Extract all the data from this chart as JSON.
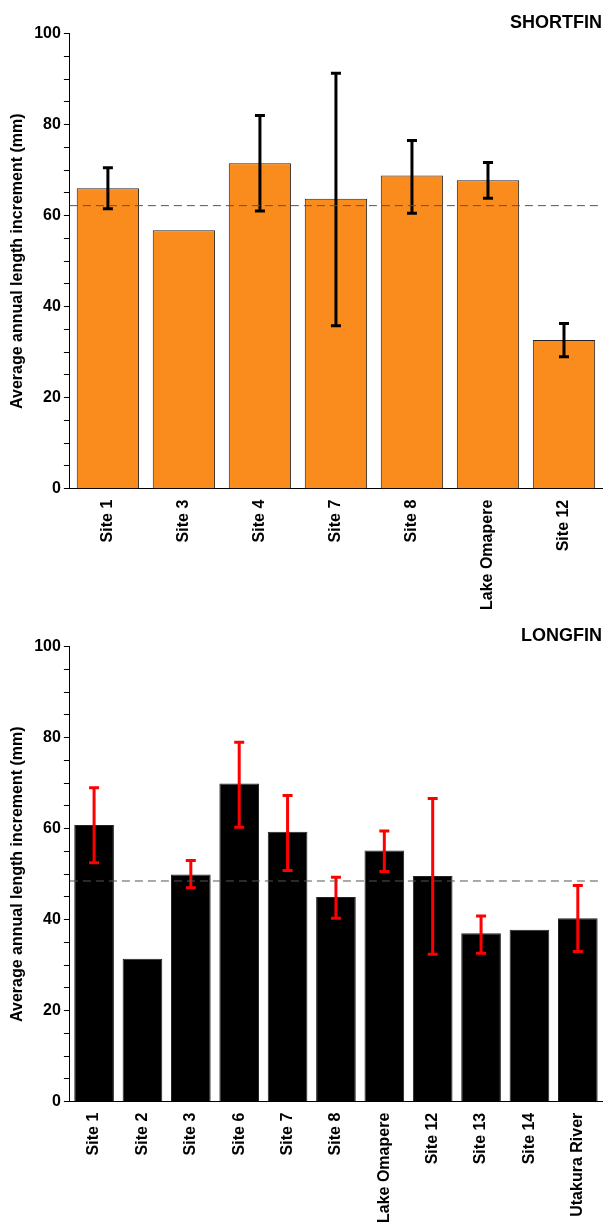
{
  "chart_data": [
    {
      "type": "bar",
      "title": "SHORTFIN",
      "ylabel": "Average annual length increment (mm)",
      "categories": [
        "Site 1",
        "Site 3",
        "Site 4",
        "Site 7",
        "Site 8",
        "Lake Omapere",
        "Site 12"
      ],
      "series": [
        {
          "color": "#fa8c1e",
          "values": [
            66,
            56.8,
            71.5,
            63.7,
            68.8,
            67.8,
            32.7
          ],
          "errors": [
            [
              61.5,
              70.5
            ],
            null,
            [
              61,
              82
            ],
            [
              35.8,
              91.3
            ],
            [
              60.5,
              76.5
            ],
            [
              63.8,
              71.7
            ],
            [
              29,
              36.3
            ]
          ]
        }
      ],
      "ylim": [
        0,
        100
      ],
      "yticks": [
        0,
        {
          "value": 5,
          "label": null
        },
        {
          "value": 10,
          "label": null
        },
        {
          "value": 15,
          "label": null
        },
        20,
        {
          "value": 25,
          "label": null
        },
        {
          "value": 30,
          "label": null
        },
        {
          "value": 35,
          "label": null
        },
        40,
        {
          "value": 45,
          "label": null
        },
        {
          "value": 50,
          "label": null
        },
        {
          "value": 55,
          "label": null
        },
        60,
        {
          "value": 65,
          "label": null
        },
        {
          "value": 70,
          "label": null
        },
        {
          "value": 75,
          "label": null
        },
        80,
        {
          "value": 85,
          "label": null
        },
        {
          "value": 90,
          "label": null
        },
        {
          "value": 95,
          "label": null
        },
        100
      ],
      "ref_lines": [
        {
          "axis": "y",
          "value": 62.2,
          "color": "#555555",
          "line_style": "dashed"
        }
      ],
      "grid": false,
      "legend": false
    },
    {
      "type": "bar",
      "title": "LONGFIN",
      "ylabel": "Average annual length increment (mm)",
      "categories": [
        "Site 1",
        "Site 2",
        "Site 3",
        "Site 6",
        "Site 7",
        "Site 8",
        "Lake Omapere",
        "Site 12",
        "Site 13",
        "Site 14",
        "Utakura River"
      ],
      "series": [
        {
          "color": "#000000",
          "values": [
            60.8,
            31.4,
            49.9,
            69.9,
            59.3,
            45,
            55.2,
            49.6,
            37,
            37.8,
            40.3
          ],
          "errors": [
            [
              52.5,
              69
            ],
            null,
            [
              47,
              53
            ],
            [
              60.3,
              79
            ],
            [
              50.8,
              67.3
            ],
            [
              40.3,
              49.3
            ],
            [
              50.6,
              59.5
            ],
            [
              32.4,
              66.6
            ],
            [
              32.6,
              40.8
            ],
            null,
            [
              33,
              47.5
            ]
          ]
        }
      ],
      "ylim": [
        0,
        100
      ],
      "yticks": [
        0,
        {
          "value": 5,
          "label": null
        },
        {
          "value": 10,
          "label": null
        },
        {
          "value": 15,
          "label": null
        },
        20,
        {
          "value": 25,
          "label": null
        },
        {
          "value": 30,
          "label": null
        },
        {
          "value": 35,
          "label": null
        },
        40,
        {
          "value": 45,
          "label": null
        },
        {
          "value": 50,
          "label": null
        },
        {
          "value": 55,
          "label": null
        },
        60,
        {
          "value": 65,
          "label": null
        },
        {
          "value": 70,
          "label": null
        },
        {
          "value": 75,
          "label": null
        },
        80,
        {
          "value": 85,
          "label": null
        },
        {
          "value": 90,
          "label": null
        },
        {
          "value": 95,
          "label": null
        },
        100
      ],
      "ref_lines": [
        {
          "axis": "y",
          "value": 48.5,
          "color": "#555555",
          "line_style": "dashed"
        }
      ],
      "grid": false,
      "legend": false
    }
  ]
}
